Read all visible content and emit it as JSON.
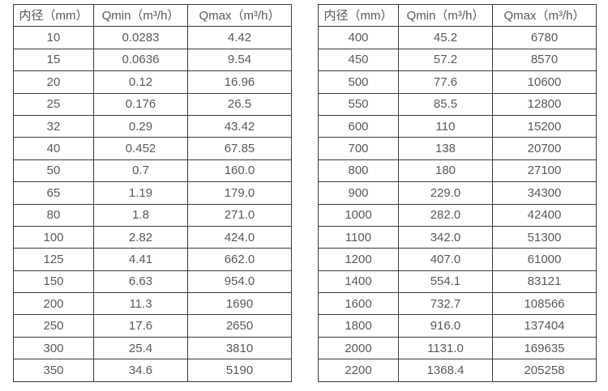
{
  "text_color": "#595959",
  "border_color": "#3b3b3b",
  "background_color": "#ffffff",
  "tables": [
    {
      "name": "flow-spec-table-small-diameters",
      "headers": [
        "内径（mm）",
        "Qmin（m³/h）",
        "Qmax（m³/h）"
      ],
      "rows": [
        [
          "10",
          "0.0283",
          "4.42"
        ],
        [
          "15",
          "0.0636",
          "9.54"
        ],
        [
          "20",
          "0.12",
          "16.96"
        ],
        [
          "25",
          "0.176",
          "26.5"
        ],
        [
          "32",
          "0.29",
          "43.42"
        ],
        [
          "40",
          "0.452",
          "67.85"
        ],
        [
          "50",
          "0.7",
          "160.0"
        ],
        [
          "65",
          "1.19",
          "179.0"
        ],
        [
          "80",
          "1.8",
          "271.0"
        ],
        [
          "100",
          "2.82",
          "424.0"
        ],
        [
          "125",
          "4.41",
          "662.0"
        ],
        [
          "150",
          "6.63",
          "954.0"
        ],
        [
          "200",
          "11.3",
          "1690"
        ],
        [
          "250",
          "17.6",
          "2650"
        ],
        [
          "300",
          "25.4",
          "3810"
        ],
        [
          "350",
          "34.6",
          "5190"
        ]
      ]
    },
    {
      "name": "flow-spec-table-large-diameters",
      "headers": [
        "内径（mm）",
        "Qmin（m³/h）",
        "Qmax（m³/h）"
      ],
      "rows": [
        [
          "400",
          "45.2",
          "6780"
        ],
        [
          "450",
          "57.2",
          "8570"
        ],
        [
          "500",
          "77.6",
          "10600"
        ],
        [
          "550",
          "85.5",
          "12800"
        ],
        [
          "600",
          "110",
          "15200"
        ],
        [
          "700",
          "138",
          "20700"
        ],
        [
          "800",
          "180",
          "27100"
        ],
        [
          "900",
          "229.0",
          "34300"
        ],
        [
          "1000",
          "282.0",
          "42400"
        ],
        [
          "1100",
          "342.0",
          "51300"
        ],
        [
          "1200",
          "407.0",
          "61000"
        ],
        [
          "1400",
          "554.1",
          "83121"
        ],
        [
          "1600",
          "732.7",
          "108566"
        ],
        [
          "1800",
          "916.0",
          "137404"
        ],
        [
          "2000",
          "1131.0",
          "169635"
        ],
        [
          "2200",
          "1368.4",
          "205258"
        ]
      ]
    }
  ]
}
